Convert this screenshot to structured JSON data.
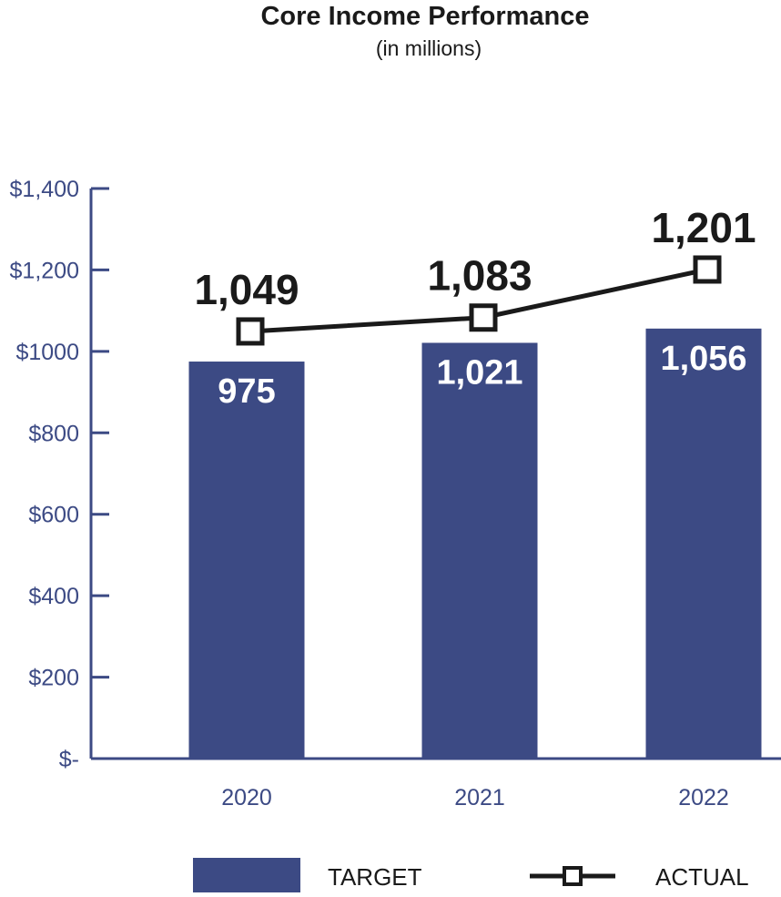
{
  "chart_data": {
    "type": "bar",
    "title": "Core Income Performance",
    "subtitle": "(in millions)",
    "categories": [
      "2020",
      "2021",
      "2022"
    ],
    "series": [
      {
        "name": "TARGET",
        "kind": "bar",
        "values": [
          975,
          1021,
          1056
        ],
        "labels": [
          "975",
          "1,021",
          "1,056"
        ],
        "color": "#3c4a84"
      },
      {
        "name": "ACTUAL",
        "kind": "line",
        "values": [
          1049,
          1083,
          1201
        ],
        "labels": [
          "1,049",
          "1,083",
          "1,201"
        ],
        "color": "#1a1a1a"
      }
    ],
    "yticks": [
      {
        "value": 0,
        "label": "$-"
      },
      {
        "value": 200,
        "label": "$200"
      },
      {
        "value": 400,
        "label": "$400"
      },
      {
        "value": 600,
        "label": "$600"
      },
      {
        "value": 800,
        "label": "$800"
      },
      {
        "value": 1000,
        "label": "$1000"
      },
      {
        "value": 1200,
        "label": "$1,200"
      },
      {
        "value": 1400,
        "label": "$1,400"
      }
    ],
    "ylim": [
      0,
      1400
    ],
    "xlabel": "",
    "ylabel": "",
    "grid": false,
    "legend_position": "bottom"
  }
}
